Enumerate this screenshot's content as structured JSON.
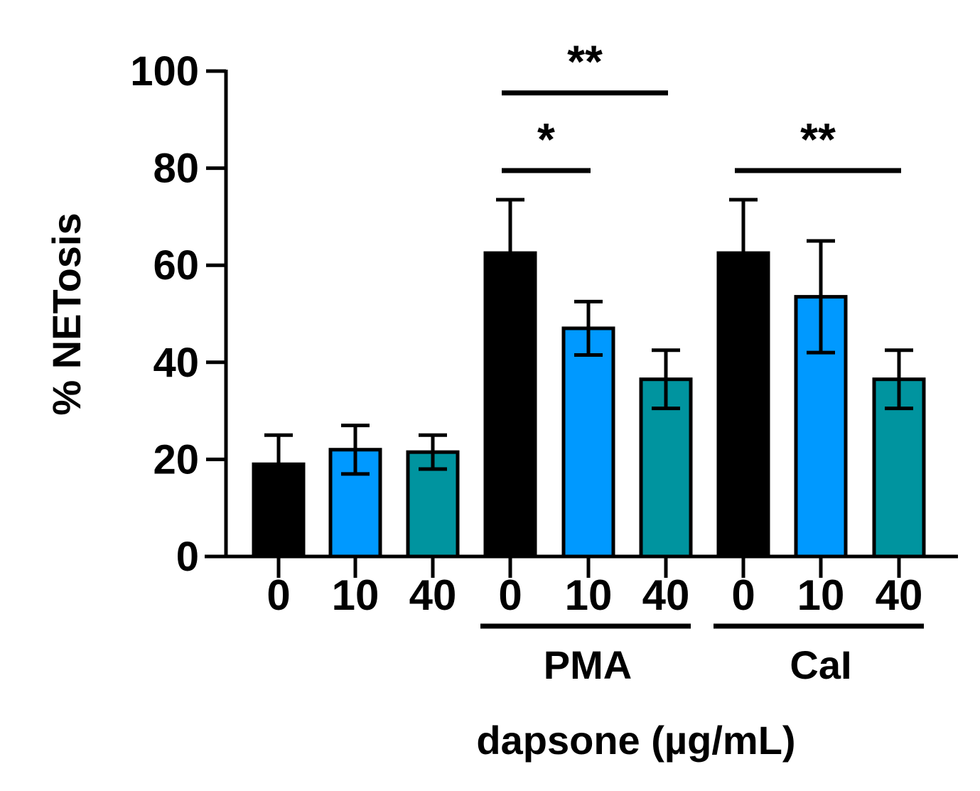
{
  "chart_data": {
    "type": "bar",
    "title": "",
    "ylabel": "% NETosis",
    "xlabel": "dapsone (µg/mL)",
    "ylim": [
      0,
      100
    ],
    "yticks": [
      0,
      20,
      40,
      60,
      80,
      100
    ],
    "categories": [
      "0",
      "10",
      "40",
      "0",
      "10",
      "40",
      "0",
      "10",
      "40"
    ],
    "values": [
      19,
      22,
      21.5,
      62.5,
      47,
      36.5,
      62.5,
      53.5,
      36.5
    ],
    "errors": [
      6,
      5,
      3.5,
      11,
      5.5,
      6,
      11,
      11.5,
      6
    ],
    "bar_colors": [
      "#000000",
      "#0099FF",
      "#00949F",
      "#000000",
      "#0099FF",
      "#00949F",
      "#000000",
      "#0099FF",
      "#00949F"
    ],
    "groups": [
      {
        "label": "PMA",
        "bars": [
          3,
          4,
          5
        ]
      },
      {
        "label": "CaI",
        "bars": [
          6,
          7,
          8
        ]
      }
    ],
    "significance": [
      {
        "from": 3,
        "to": 5,
        "label": "**",
        "y": 95.5
      },
      {
        "from": 3,
        "to": 4,
        "label": "*",
        "y": 79.5
      },
      {
        "from": 6,
        "to": 8,
        "label": "**",
        "y": 79.5
      }
    ],
    "grid": false,
    "legend": "none"
  }
}
